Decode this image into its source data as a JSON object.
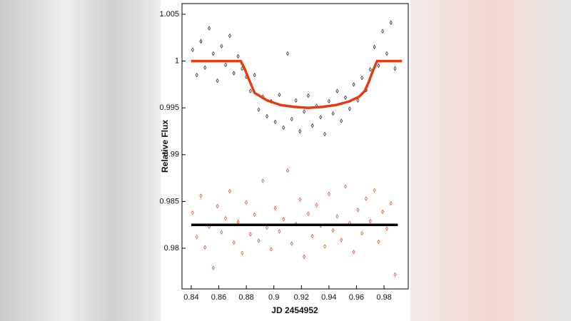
{
  "chart_data": {
    "type": "scatter",
    "x_label": "JD 2454952",
    "y_label": "Relative Flux",
    "xlim": [
      0.8333,
      0.9976
    ],
    "ylim": [
      0.97566,
      1.00614
    ],
    "xticks": [
      0.84,
      0.86,
      0.88,
      0.9,
      0.92,
      0.94,
      0.96,
      0.98
    ],
    "yticks": [
      0.98,
      0.985,
      0.99,
      0.995,
      1,
      1.005
    ],
    "series": [
      {
        "mode": "markers",
        "color": "#333333",
        "x": [
          0.841,
          0.844,
          0.847,
          0.85,
          0.853,
          0.856,
          0.859,
          0.862,
          0.865,
          0.868,
          0.871,
          0.874,
          0.877,
          0.88,
          0.883,
          0.886,
          0.889,
          0.892,
          0.895,
          0.898,
          0.901,
          0.904,
          0.907,
          0.91,
          0.913,
          0.916,
          0.919,
          0.922,
          0.925,
          0.928,
          0.931,
          0.934,
          0.937,
          0.94,
          0.943,
          0.946,
          0.949,
          0.952,
          0.955,
          0.958,
          0.961,
          0.964,
          0.967,
          0.97,
          0.973,
          0.976,
          0.979,
          0.982,
          0.985,
          0.988
        ],
        "values": [
          1.0012,
          0.9985,
          1.0021,
          0.9993,
          1.0035,
          1.0008,
          0.9979,
          1.0016,
          0.9996,
          1.0027,
          0.9987,
          1.0005,
          0.9992,
          0.9983,
          0.9968,
          0.9985,
          0.9948,
          0.9962,
          0.9941,
          0.9957,
          0.9935,
          0.9964,
          0.9929,
          1.0008,
          0.9938,
          0.9958,
          0.9925,
          0.9946,
          0.9963,
          0.9931,
          0.9952,
          0.994,
          0.9922,
          0.9957,
          0.9944,
          0.9968,
          0.9936,
          0.9961,
          0.9949,
          0.9975,
          0.9958,
          0.9982,
          0.9969,
          0.9991,
          1.0015,
          0.9995,
          1.0032,
          1.0008,
          1.0041,
          0.9992
        ]
      },
      {
        "mode": "markers",
        "color": "#e8553a",
        "x": [
          0.841,
          0.844,
          0.847,
          0.85,
          0.853,
          0.856,
          0.859,
          0.862,
          0.865,
          0.868,
          0.871,
          0.874,
          0.877,
          0.88,
          0.883,
          0.886,
          0.889,
          0.892,
          0.895,
          0.898,
          0.901,
          0.904,
          0.907,
          0.91,
          0.913,
          0.916,
          0.919,
          0.922,
          0.925,
          0.928,
          0.931,
          0.934,
          0.937,
          0.94,
          0.943,
          0.946,
          0.949,
          0.952,
          0.955,
          0.958,
          0.961,
          0.964,
          0.967,
          0.97,
          0.973,
          0.976,
          0.979,
          0.982,
          0.985,
          0.988
        ],
        "values": [
          0.9838,
          0.9812,
          0.9856,
          0.9801,
          0.9823,
          0.9779,
          0.9845,
          0.9817,
          0.9832,
          0.9861,
          0.9806,
          0.9828,
          0.9795,
          0.9849,
          0.9815,
          0.9836,
          0.9808,
          0.9872,
          0.9822,
          0.9799,
          0.9843,
          0.9818,
          0.9831,
          0.9883,
          0.9805,
          0.9826,
          0.9852,
          0.9791,
          0.9837,
          0.9813,
          0.9846,
          0.9824,
          0.9802,
          0.9858,
          0.9819,
          0.9834,
          0.9809,
          0.9866,
          0.9827,
          0.9796,
          0.9841,
          0.9816,
          0.9853,
          0.9829,
          0.9862,
          0.9807,
          0.9839,
          0.9821,
          0.9848,
          0.9772
        ]
      },
      {
        "mode": "line",
        "color": "#e83a10",
        "x": [
          0.84,
          0.876,
          0.879,
          0.882,
          0.886,
          0.895,
          0.905,
          0.915,
          0.925,
          0.935,
          0.945,
          0.955,
          0.962,
          0.966,
          0.969,
          0.972,
          0.975,
          0.993
        ],
        "values": [
          1,
          1,
          0.9991,
          0.998,
          0.9966,
          0.9958,
          0.9953,
          0.9951,
          0.995,
          0.9951,
          0.9953,
          0.9957,
          0.9962,
          0.9968,
          0.9978,
          0.999,
          1,
          1
        ]
      },
      {
        "mode": "line",
        "color": "#000000",
        "x": [
          0.84,
          0.99
        ],
        "values": [
          0.9825,
          0.9825
        ]
      }
    ]
  }
}
